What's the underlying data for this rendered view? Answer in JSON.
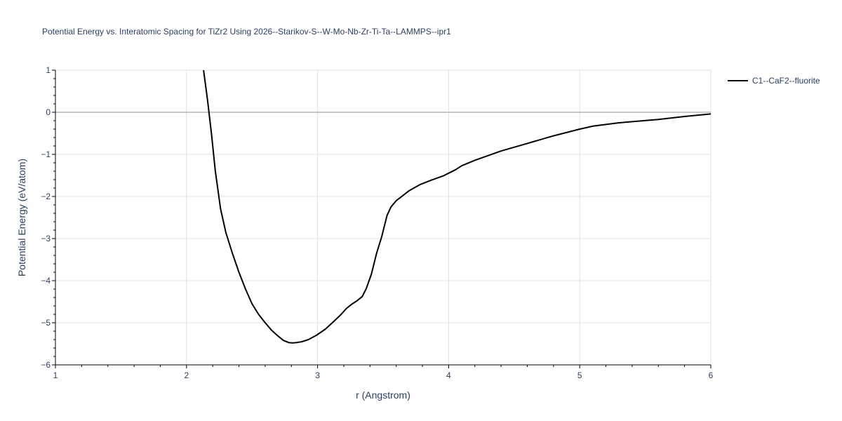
{
  "chart_data": {
    "type": "line",
    "title": "Potential Energy vs. Interatomic Spacing for TiZr2 Using 2026--Starikov-S--W-Mo-Nb-Zr-Ti-Ta--LAMMPS--ipr1",
    "xlabel": "r (Angstrom)",
    "ylabel": "Potential Energy (eV/atom)",
    "xlim": [
      1,
      6
    ],
    "ylim": [
      -6,
      1
    ],
    "x_ticks": [
      "1",
      "2",
      "3",
      "4",
      "5",
      "6"
    ],
    "y_ticks": [
      "1",
      "0",
      "−1",
      "−2",
      "−3",
      "−4",
      "−5",
      "−6"
    ],
    "grid": true,
    "legend_position": "top-right",
    "series": [
      {
        "name": "C1--CaF2--fluorite",
        "color": "#000000",
        "x": [
          2.13,
          2.16,
          2.19,
          2.22,
          2.26,
          2.3,
          2.35,
          2.4,
          2.45,
          2.5,
          2.55,
          2.6,
          2.65,
          2.7,
          2.74,
          2.78,
          2.81,
          2.84,
          2.88,
          2.93,
          2.99,
          3.06,
          3.13,
          3.18,
          3.22,
          3.26,
          3.3,
          3.34,
          3.37,
          3.41,
          3.45,
          3.49,
          3.53,
          3.56,
          3.6,
          3.65,
          3.7,
          3.78,
          3.87,
          3.96,
          4.05,
          4.1,
          4.2,
          4.4,
          4.6,
          4.8,
          5.0,
          5.1,
          5.3,
          5.6,
          5.8,
          6.0
        ],
        "y": [
          1.0,
          0.3,
          -0.5,
          -1.4,
          -2.3,
          -2.85,
          -3.35,
          -3.8,
          -4.2,
          -4.55,
          -4.8,
          -5.0,
          -5.18,
          -5.32,
          -5.42,
          -5.47,
          -5.48,
          -5.47,
          -5.45,
          -5.4,
          -5.3,
          -5.15,
          -4.95,
          -4.8,
          -4.66,
          -4.56,
          -4.48,
          -4.38,
          -4.2,
          -3.85,
          -3.35,
          -2.95,
          -2.45,
          -2.25,
          -2.1,
          -1.98,
          -1.86,
          -1.72,
          -1.61,
          -1.51,
          -1.37,
          -1.27,
          -1.14,
          -0.92,
          -0.74,
          -0.56,
          -0.4,
          -0.33,
          -0.25,
          -0.17,
          -0.1,
          -0.04
        ]
      }
    ]
  }
}
